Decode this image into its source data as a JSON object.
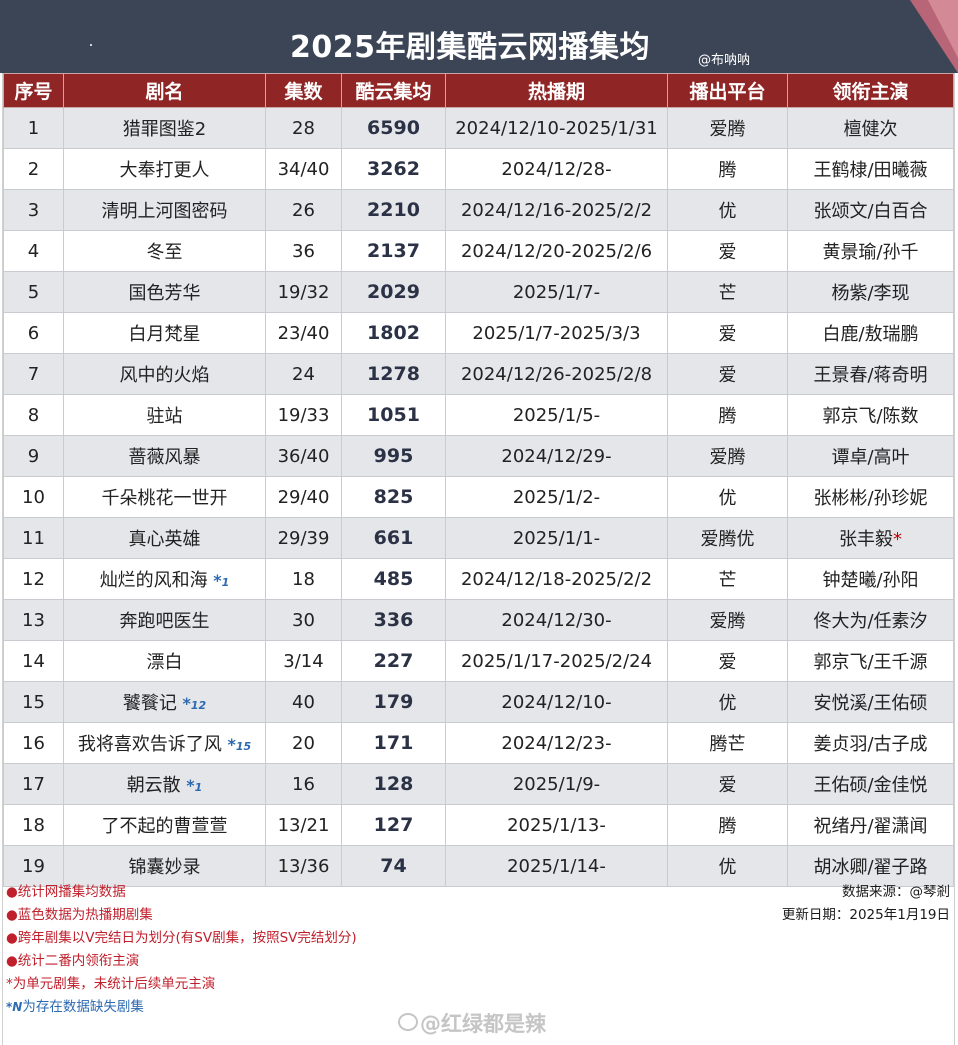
{
  "header": {
    "title": "2025年剧集酷云网播集均",
    "author": "@布呐呐"
  },
  "table": {
    "columns": [
      "序号",
      "剧名",
      "集数",
      "酷云集均",
      "热播期",
      "播出平台",
      "领衔主演"
    ],
    "rows": [
      {
        "no": "1",
        "name": "猎罪图鉴2",
        "mark": "",
        "episodes": "28",
        "avg": "6590",
        "period": "2024/12/10-2025/1/31",
        "platform": "爱腾",
        "lead": "檀健次"
      },
      {
        "no": "2",
        "name": "大奉打更人",
        "mark": "",
        "episodes": "34/40",
        "avg": "3262",
        "period": "2024/12/28-",
        "platform": "腾",
        "lead": "王鹤棣/田曦薇"
      },
      {
        "no": "3",
        "name": "清明上河图密码",
        "mark": "",
        "episodes": "26",
        "avg": "2210",
        "period": "2024/12/16-2025/2/2",
        "platform": "优",
        "lead": "张颂文/白百合"
      },
      {
        "no": "4",
        "name": "冬至",
        "mark": "",
        "episodes": "36",
        "avg": "2137",
        "period": "2024/12/20-2025/2/6",
        "platform": "爱",
        "lead": "黄景瑜/孙千"
      },
      {
        "no": "5",
        "name": "国色芳华",
        "mark": "",
        "episodes": "19/32",
        "avg": "2029",
        "period": "2025/1/7-",
        "platform": "芒",
        "lead": "杨紫/李现"
      },
      {
        "no": "6",
        "name": "白月梵星",
        "mark": "",
        "episodes": "23/40",
        "avg": "1802",
        "period": "2025/1/7-2025/3/3",
        "platform": "爱",
        "lead": "白鹿/敖瑞鹏"
      },
      {
        "no": "7",
        "name": "风中的火焰",
        "mark": "",
        "episodes": "24",
        "avg": "1278",
        "period": "2024/12/26-2025/2/8",
        "platform": "爱",
        "lead": "王景春/蒋奇明"
      },
      {
        "no": "8",
        "name": "驻站",
        "mark": "",
        "episodes": "19/33",
        "avg": "1051",
        "period": "2025/1/5-",
        "platform": "腾",
        "lead": "郭京飞/陈数"
      },
      {
        "no": "9",
        "name": "蔷薇风暴",
        "mark": "",
        "episodes": "36/40",
        "avg": "995",
        "period": "2024/12/29-",
        "platform": "爱腾",
        "lead": "谭卓/高叶"
      },
      {
        "no": "10",
        "name": "千朵桃花一世开",
        "mark": "",
        "episodes": "29/40",
        "avg": "825",
        "period": "2025/1/2-",
        "platform": "优",
        "lead": "张彬彬/孙珍妮"
      },
      {
        "no": "11",
        "name": "真心英雄",
        "mark": "",
        "episodes": "29/39",
        "avg": "661",
        "period": "2025/1/1-",
        "platform": "爱腾优",
        "lead": "张丰毅",
        "lead_star": "*"
      },
      {
        "no": "12",
        "name": "灿烂的风和海",
        "mark": "*",
        "mark_n": "1",
        "episodes": "18",
        "avg": "485",
        "period": "2024/12/18-2025/2/2",
        "platform": "芒",
        "lead": "钟楚曦/孙阳"
      },
      {
        "no": "13",
        "name": "奔跑吧医生",
        "mark": "",
        "episodes": "30",
        "avg": "336",
        "period": "2024/12/30-",
        "platform": "爱腾",
        "lead": "佟大为/任素汐"
      },
      {
        "no": "14",
        "name": "漂白",
        "mark": "",
        "episodes": "3/14",
        "avg": "227",
        "period": "2025/1/17-2025/2/24",
        "platform": "爱",
        "lead": "郭京飞/王千源"
      },
      {
        "no": "15",
        "name": "饕餮记",
        "mark": "*",
        "mark_n": "12",
        "episodes": "40",
        "avg": "179",
        "period": "2024/12/10-",
        "platform": "优",
        "lead": "安悦溪/王佑硕"
      },
      {
        "no": "16",
        "name": "我将喜欢告诉了风",
        "mark": "*",
        "mark_n": "15",
        "episodes": "20",
        "avg": "171",
        "period": "2024/12/23-",
        "platform": "腾芒",
        "lead": "姜贞羽/古子成"
      },
      {
        "no": "17",
        "name": "朝云散",
        "mark": "*",
        "mark_n": "1",
        "episodes": "16",
        "avg": "128",
        "period": "2025/1/9-",
        "platform": "爱",
        "lead": "王佑硕/金佳悦"
      },
      {
        "no": "18",
        "name": "了不起的曹萱萱",
        "mark": "",
        "episodes": "13/21",
        "avg": "127",
        "period": "2025/1/13-",
        "platform": "腾",
        "lead": "祝绪丹/翟潇闻"
      },
      {
        "no": "19",
        "name": "锦囊妙录",
        "mark": "",
        "episodes": "13/36",
        "avg": "74",
        "period": "2025/1/14-",
        "platform": "优",
        "lead": "胡冰卿/翟子路"
      }
    ]
  },
  "notes": [
    {
      "text": "●统计网播集均数据",
      "color": "red"
    },
    {
      "text": "●蓝色数据为热播期剧集",
      "color": "red"
    },
    {
      "text": "●跨年剧集以V完结日为划分(有SV剧集，按照SV完结划分)",
      "color": "red"
    },
    {
      "text": "●统计二番内领衔主演",
      "color": "red"
    },
    {
      "text": "*为单元剧集，未统计后续单元主演",
      "color": "red"
    },
    {
      "prefix": "*N",
      "text": "为存在数据缺失剧集",
      "color": "blue"
    }
  ],
  "meta": {
    "source": "数据来源：@琴剎",
    "updated": "更新日期：2025年1月19日"
  },
  "watermark": "@红绿都是辣",
  "colors": {
    "banner": "#3b4556",
    "header_row": "#8f2525",
    "stripe": "#e4e6ea",
    "note_red": "#c0202c",
    "note_blue": "#2d6ab1"
  }
}
